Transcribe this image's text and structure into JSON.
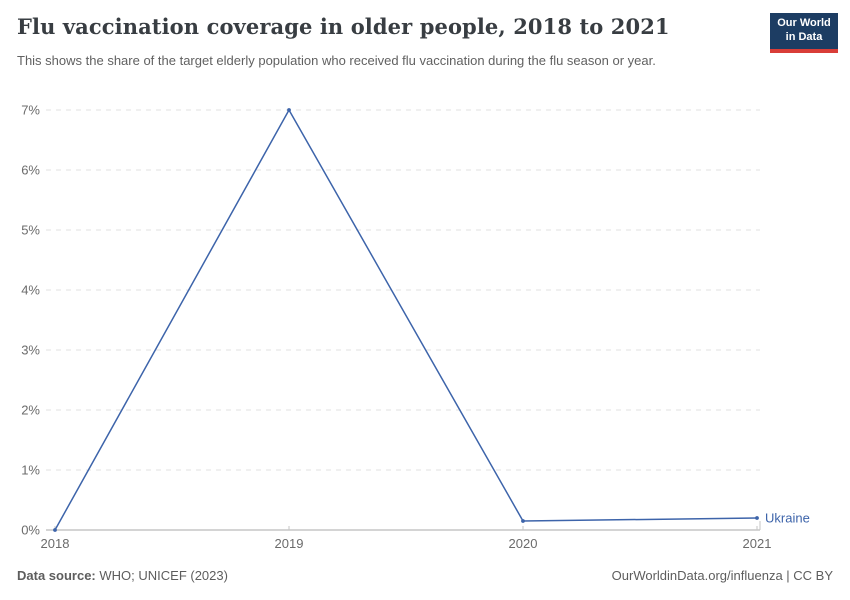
{
  "header": {
    "title": "Flu vaccination coverage in older people, 2018 to 2021",
    "subtitle": "This shows the share of the target elderly population who received flu vaccination during the flu season or year.",
    "logo": {
      "line1": "Our World",
      "line2": "in Data",
      "bg_color": "#1d3d63",
      "stripe_color": "#d93d38"
    }
  },
  "chart_data": {
    "type": "line",
    "title": "Flu vaccination coverage in older people, 2018 to 2021",
    "x": [
      2018,
      2019,
      2020,
      2021
    ],
    "series": [
      {
        "name": "Ukraine",
        "color": "#3d64aa",
        "values": [
          0,
          7,
          0.15,
          0.2
        ]
      }
    ],
    "xlabel": "",
    "ylabel": "",
    "xlim": [
      2018,
      2021
    ],
    "ylim": [
      0,
      7
    ],
    "x_ticks": [
      2018,
      2019,
      2020,
      2021
    ],
    "y_ticks": [
      0,
      1,
      2,
      3,
      4,
      5,
      6,
      7
    ],
    "y_tick_suffix": "%",
    "grid": "horizontal-dashed",
    "legend_position": "end-of-line",
    "colors": {
      "gridline": "#e2e2e2",
      "axis": "#a9a9a9",
      "tick": "#c6c6c6",
      "tick_label": "#6b6b6b"
    }
  },
  "footer": {
    "data_source_label": "Data source:",
    "data_source_value": "WHO; UNICEF (2023)",
    "attribution": "OurWorldinData.org/influenza | CC BY"
  }
}
